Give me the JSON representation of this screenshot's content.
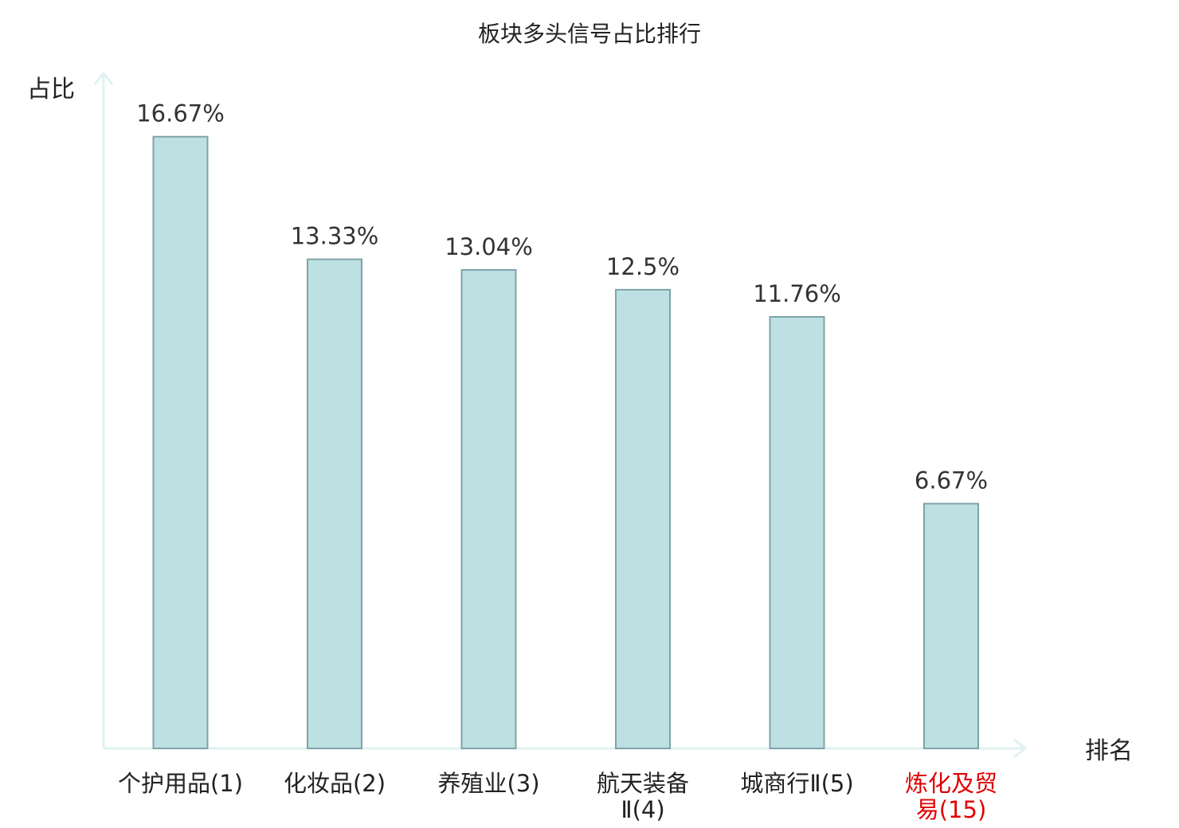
{
  "chart_data": {
    "type": "bar",
    "title": "板块多头信号占比排行",
    "ylabel": "占比",
    "xlabel": "排名",
    "categories": [
      [
        "个护用品(1)"
      ],
      [
        "化妆品(2)"
      ],
      [
        "养殖业(3)"
      ],
      [
        "航天装备",
        "Ⅱ(4)"
      ],
      [
        "城商行Ⅱ(5)"
      ],
      [
        "炼化及贸",
        "易(15)"
      ]
    ],
    "values": [
      16.67,
      13.33,
      13.04,
      12.5,
      11.76,
      6.67
    ],
    "value_labels": [
      "16.67%",
      "13.33%",
      "13.04%",
      "12.5%",
      "11.76%",
      "6.67%"
    ],
    "highlight_index": 5,
    "ylim": [
      0,
      18.4
    ],
    "grid": false,
    "colors": {
      "bar_fill": "#bde0e3",
      "bar_stroke": "#7fa3a6",
      "axis": "#dff2f0",
      "label": "#222222",
      "highlight_label": "#e00000"
    }
  }
}
